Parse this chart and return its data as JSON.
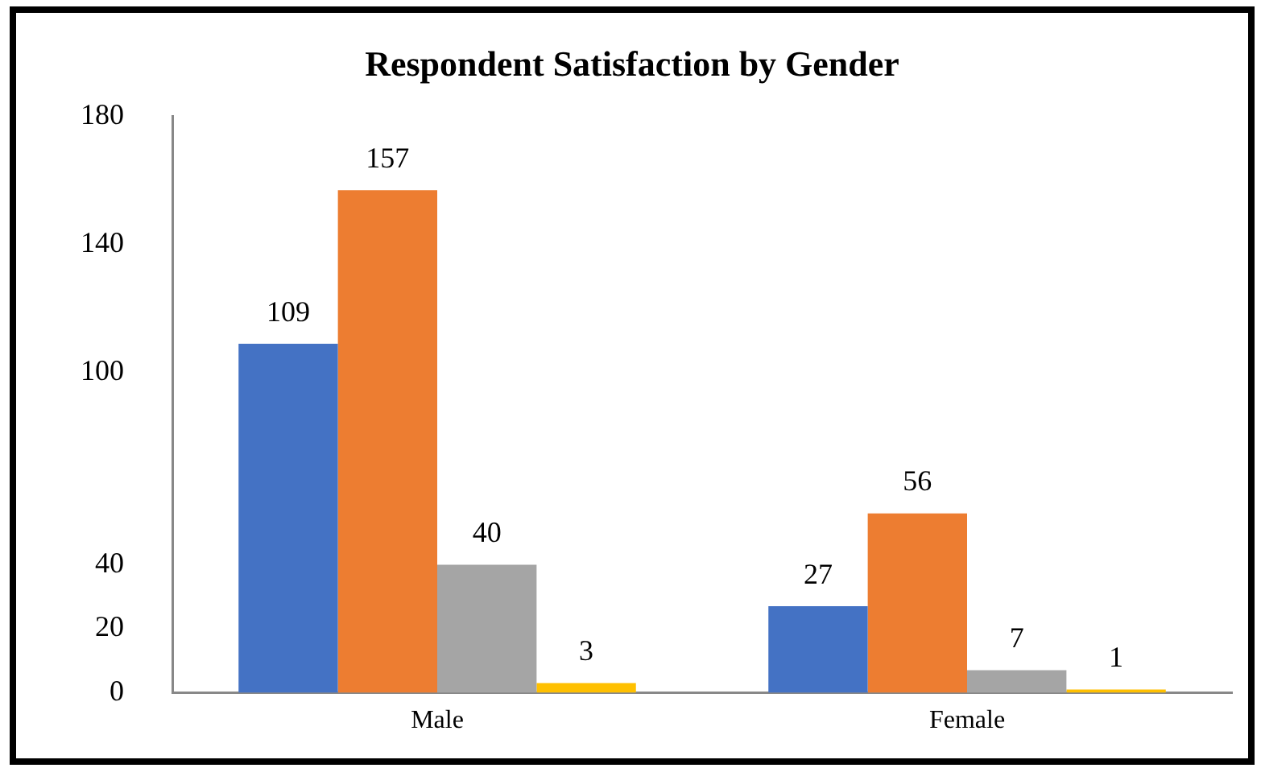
{
  "chart_data": {
    "type": "bar",
    "title": "Respondent Satisfaction by Gender",
    "categories": [
      "Male",
      "Female"
    ],
    "series": [
      {
        "color": "#4472c4",
        "values": [
          109,
          27
        ]
      },
      {
        "color": "#ed7d31",
        "values": [
          157,
          56
        ]
      },
      {
        "color": "#a5a5a5",
        "values": [
          40,
          7
        ]
      },
      {
        "color": "#ffc000",
        "values": [
          3,
          1
        ]
      }
    ],
    "ylim": [
      0,
      180
    ],
    "yticks": [
      0,
      20,
      40,
      100,
      140,
      180
    ],
    "grid": false,
    "legend": false,
    "data_labels": true
  }
}
